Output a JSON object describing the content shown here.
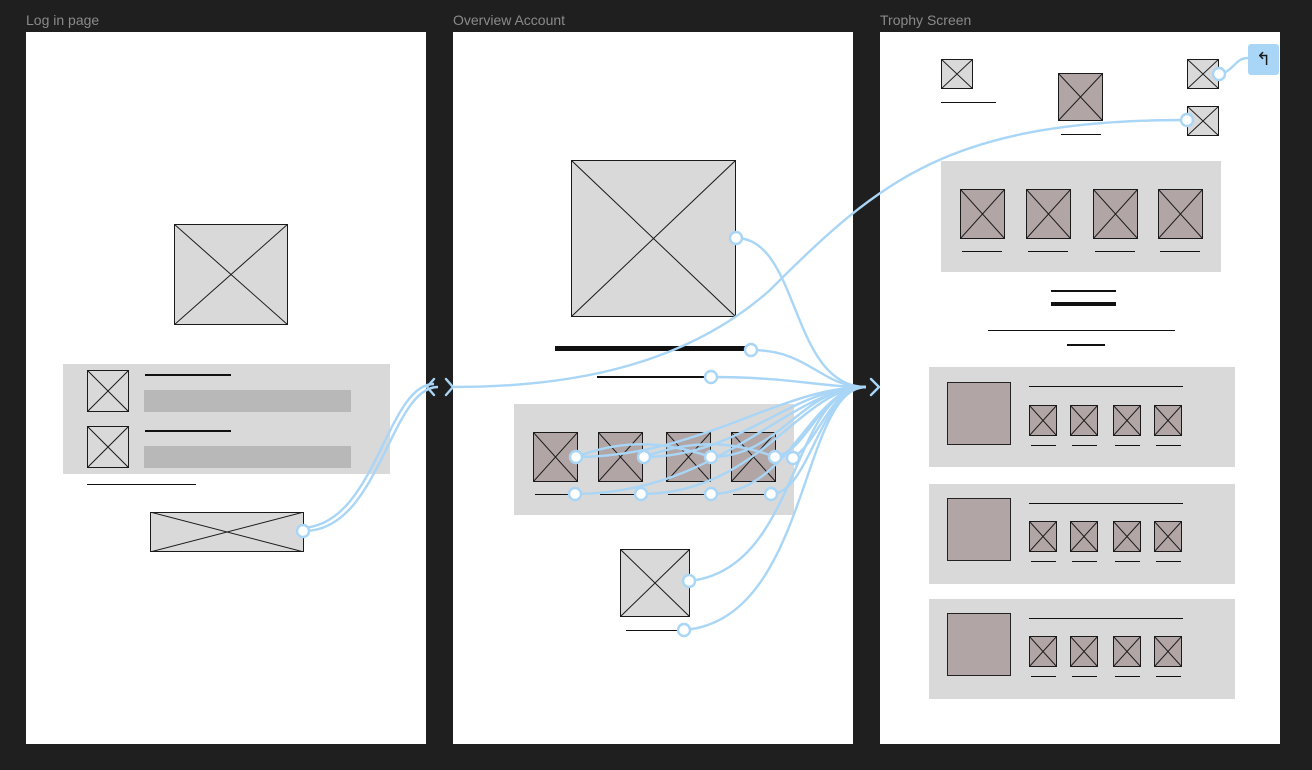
{
  "canvas": {
    "background": "#1f1f1f",
    "wire_color": "#a9d5f6"
  },
  "frames": [
    {
      "id": "login",
      "label": "Log in page"
    },
    {
      "id": "overview",
      "label": "Overview Account"
    },
    {
      "id": "trophy",
      "label": "Trophy Screen"
    }
  ],
  "trophy": {
    "back_icon": "back-arrow-icon",
    "back_glyph": "↰"
  }
}
